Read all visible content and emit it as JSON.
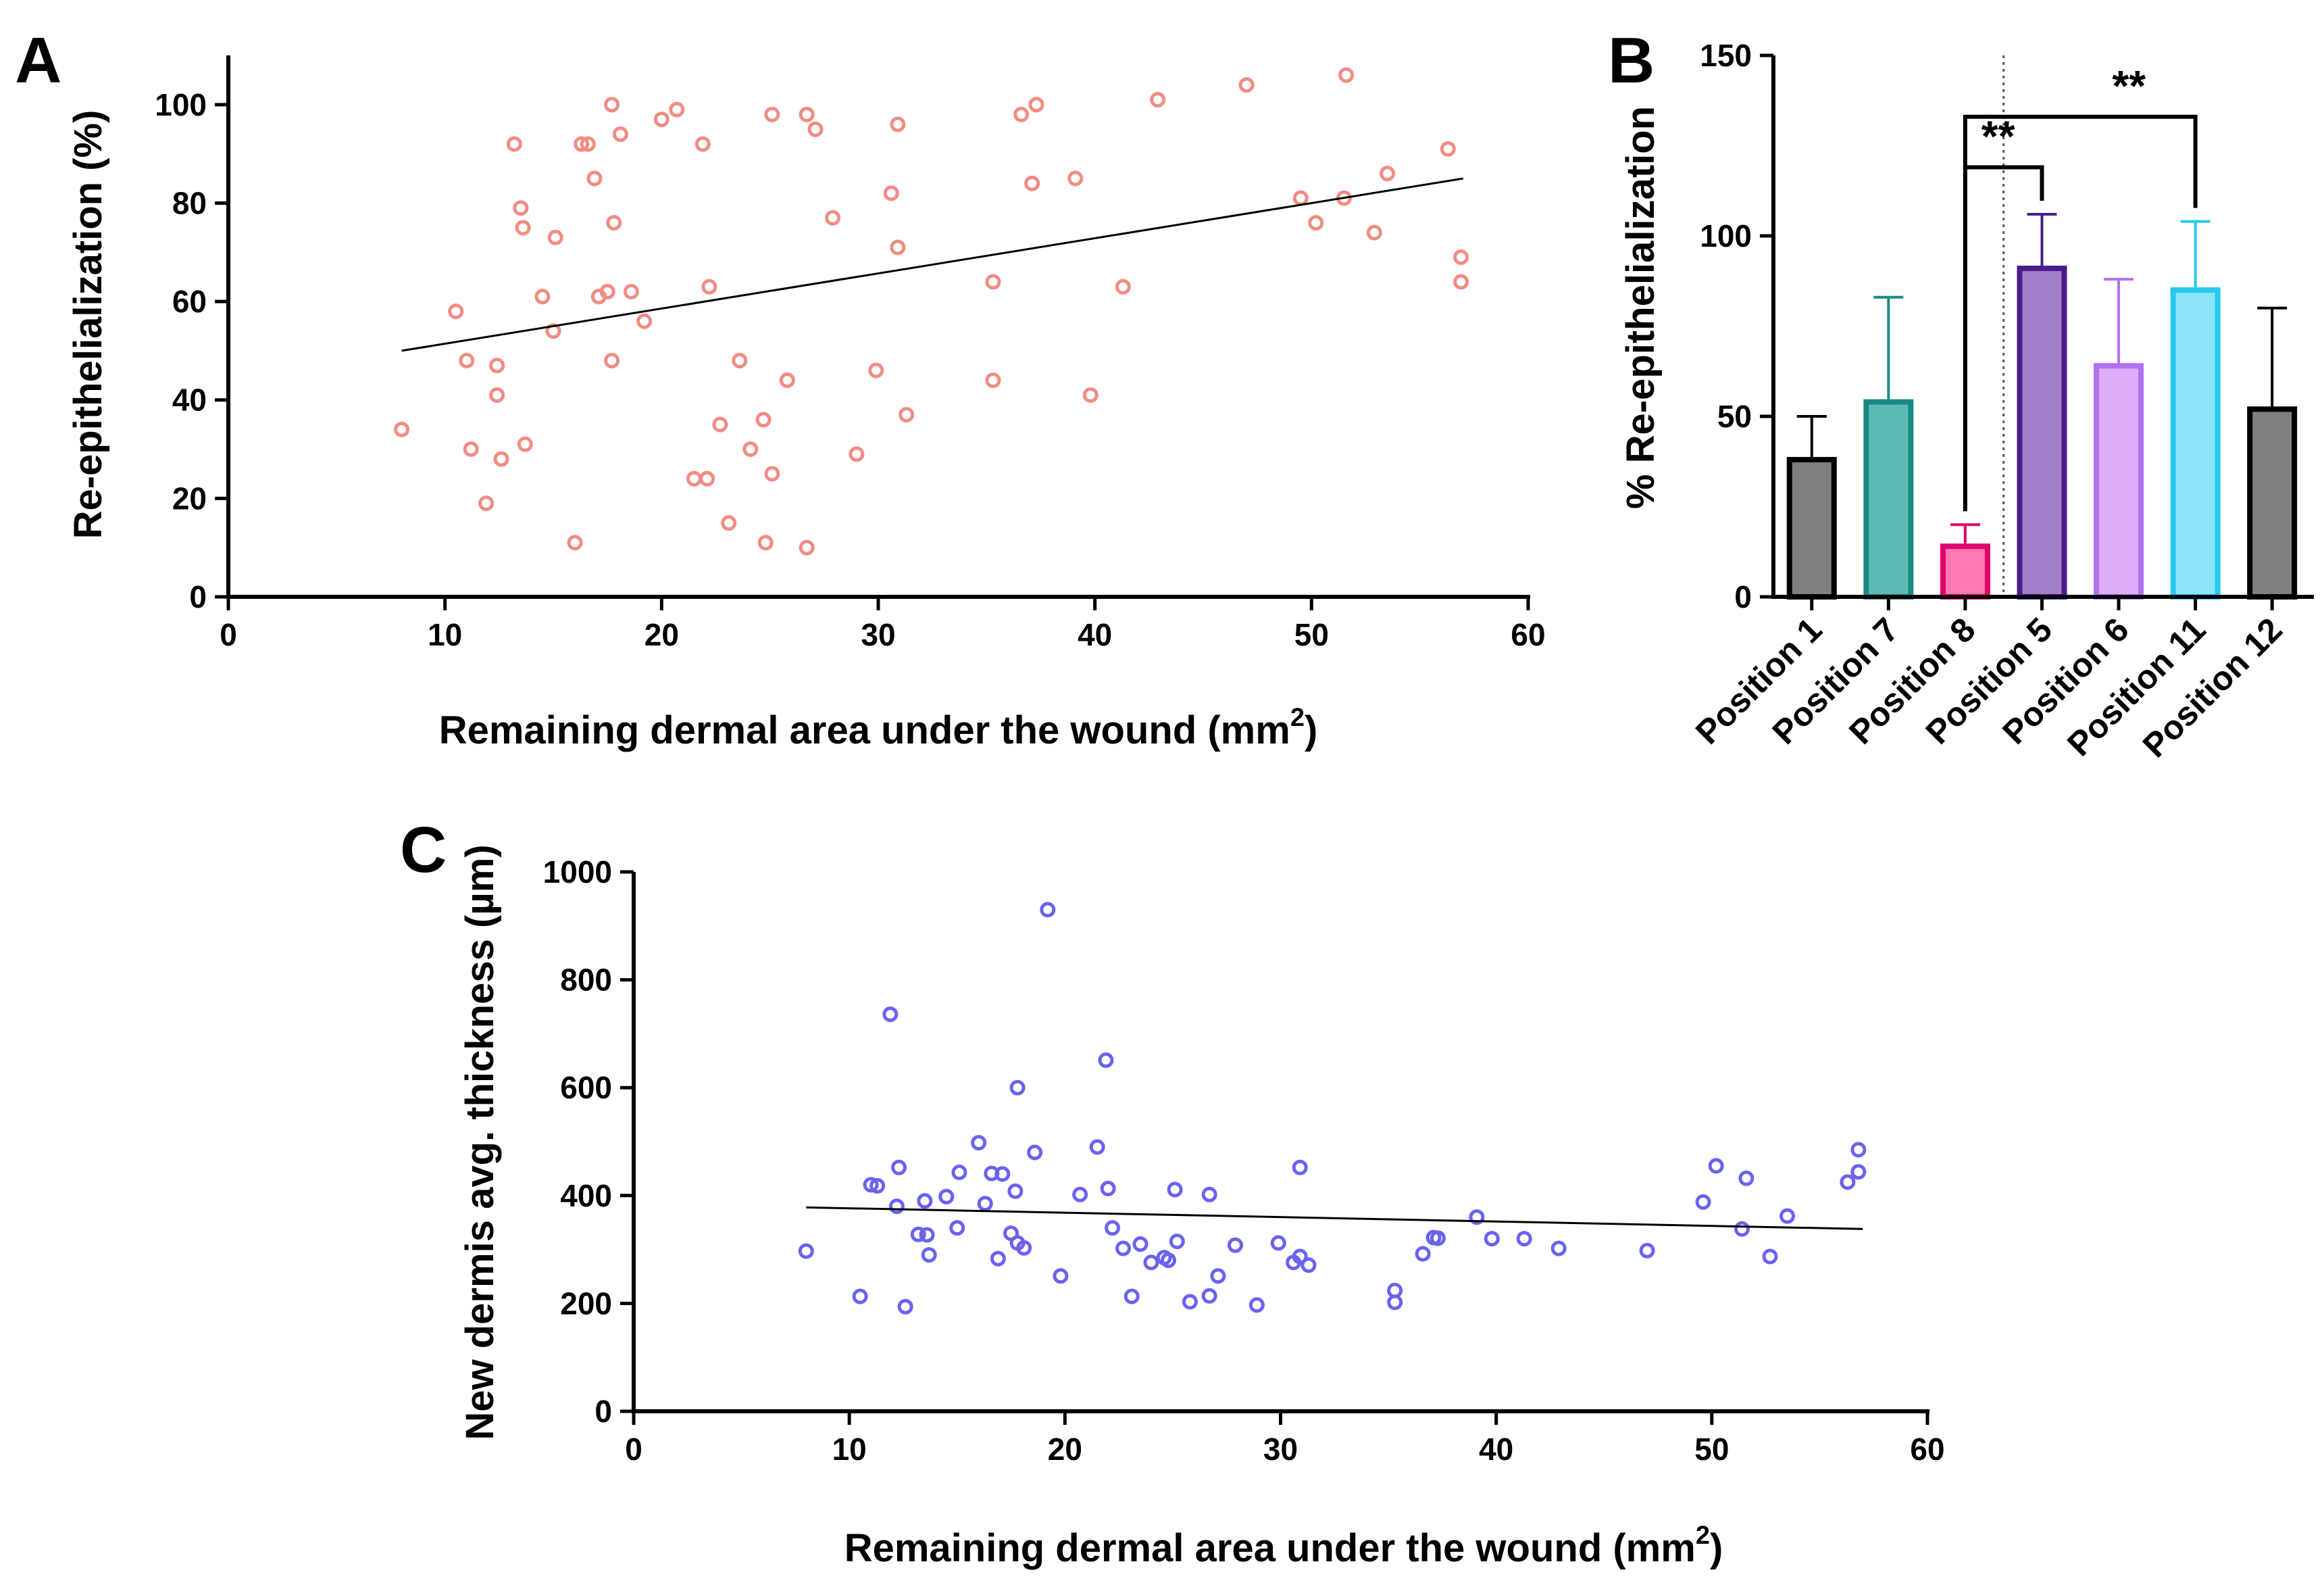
{
  "chart_data": [
    {
      "panel": "A",
      "type": "scatter",
      "xlabel": "Remaining dermal area under the wound (mm",
      "xlabel_sup": "2",
      "xlabel_end": ")",
      "ylabel": "Re-epithelialization (%)",
      "xlim": [
        0,
        60
      ],
      "ylim": [
        0,
        110
      ],
      "xticks": [
        "0",
        "10",
        "20",
        "30",
        "40",
        "50",
        "60"
      ],
      "yticks": [
        "0",
        "20",
        "40",
        "60",
        "80",
        "100"
      ],
      "marker_color": "#f08c84",
      "fit_line": {
        "x": [
          8,
          57
        ],
        "y": [
          50,
          85
        ]
      },
      "points": [
        [
          8,
          34
        ],
        [
          10.5,
          58
        ],
        [
          11,
          48
        ],
        [
          11.2,
          30
        ],
        [
          11.9,
          19
        ],
        [
          12.4,
          41
        ],
        [
          12.4,
          47
        ],
        [
          12.6,
          28
        ],
        [
          13.2,
          92
        ],
        [
          13.5,
          79
        ],
        [
          13.6,
          75
        ],
        [
          13.7,
          31
        ],
        [
          14.5,
          61
        ],
        [
          15,
          54
        ],
        [
          15.1,
          73
        ],
        [
          16,
          11
        ],
        [
          16.3,
          92
        ],
        [
          16.6,
          92
        ],
        [
          16.9,
          85
        ],
        [
          17.1,
          61
        ],
        [
          17.5,
          62
        ],
        [
          17.7,
          100
        ],
        [
          17.7,
          48
        ],
        [
          17.8,
          76
        ],
        [
          18.1,
          94
        ],
        [
          18.6,
          62
        ],
        [
          19.2,
          56
        ],
        [
          20,
          97
        ],
        [
          20.7,
          99
        ],
        [
          21.5,
          24
        ],
        [
          21.9,
          92
        ],
        [
          22.1,
          24
        ],
        [
          22.2,
          63
        ],
        [
          22.7,
          35
        ],
        [
          23.1,
          15
        ],
        [
          23.6,
          48
        ],
        [
          24.1,
          30
        ],
        [
          24.7,
          36
        ],
        [
          24.8,
          11
        ],
        [
          25.1,
          25
        ],
        [
          25.1,
          98
        ],
        [
          25.8,
          44
        ],
        [
          26.7,
          10
        ],
        [
          26.7,
          98
        ],
        [
          27.1,
          95
        ],
        [
          27.9,
          77
        ],
        [
          29,
          29
        ],
        [
          29.9,
          46
        ],
        [
          30.6,
          82
        ],
        [
          30.9,
          96
        ],
        [
          30.9,
          71
        ],
        [
          31.3,
          37
        ],
        [
          35.3,
          44
        ],
        [
          35.3,
          64
        ],
        [
          36.6,
          98
        ],
        [
          37.1,
          84
        ],
        [
          37.3,
          100
        ],
        [
          39.1,
          85
        ],
        [
          39.8,
          41
        ],
        [
          41.3,
          63
        ],
        [
          42.9,
          101
        ],
        [
          47,
          104
        ],
        [
          49.5,
          81
        ],
        [
          50.2,
          76
        ],
        [
          51.5,
          81
        ],
        [
          51.6,
          106
        ],
        [
          52.9,
          74
        ],
        [
          53.5,
          86
        ],
        [
          56.3,
          91
        ],
        [
          56.9,
          64
        ],
        [
          56.9,
          69
        ]
      ]
    },
    {
      "panel": "B",
      "type": "bar",
      "ylabel": "% Re-epithelialization",
      "ylim": [
        0,
        150
      ],
      "yticks": [
        "0",
        "50",
        "100",
        "150"
      ],
      "categories": [
        "Position 1",
        "Position 7",
        "Position 8",
        "Position 5",
        "Position 6",
        "Position 11",
        "Position 12"
      ],
      "values": [
        38,
        54,
        14,
        91,
        64,
        85,
        52
      ],
      "errors": [
        12,
        29,
        6,
        15,
        24,
        19,
        28
      ],
      "fill_colors": [
        "#808080",
        "#5dbbb5",
        "#ff7ab3",
        "#a47fc9",
        "#dbaef7",
        "#8be4f8",
        "#808080"
      ],
      "edge_colors": [
        "#000000",
        "#1a8a85",
        "#e0006e",
        "#4b1a8c",
        "#b26ff0",
        "#26c8ee",
        "#000000"
      ],
      "divider_after": "Position 8",
      "significance": [
        {
          "from": "Position 8",
          "to": "Position 5",
          "label": "**"
        },
        {
          "from": "Position 8",
          "to": "Position 11",
          "label": "**"
        }
      ]
    },
    {
      "panel": "C",
      "type": "scatter",
      "xlabel": "Remaining dermal area under the wound (mm",
      "xlabel_sup": "2",
      "xlabel_end": ")",
      "ylabel": "New dermis avg. thickness (µm)",
      "xlim": [
        0,
        60
      ],
      "ylim": [
        0,
        1000
      ],
      "xticks": [
        "0",
        "10",
        "20",
        "30",
        "40",
        "50",
        "60"
      ],
      "yticks": [
        "0",
        "200",
        "400",
        "600",
        "800",
        "1000"
      ],
      "marker_color": "#6a62ee",
      "fit_line": {
        "x": [
          8,
          57
        ],
        "y": [
          378,
          338
        ]
      },
      "points": [
        [
          8,
          297
        ],
        [
          10.5,
          213
        ],
        [
          11,
          420
        ],
        [
          11.3,
          418
        ],
        [
          11.9,
          736
        ],
        [
          12.2,
          380
        ],
        [
          12.3,
          452
        ],
        [
          12.6,
          194
        ],
        [
          13.2,
          328
        ],
        [
          13.5,
          390
        ],
        [
          13.6,
          327
        ],
        [
          13.7,
          290
        ],
        [
          14.5,
          398
        ],
        [
          15,
          340
        ],
        [
          15.1,
          443
        ],
        [
          16,
          498
        ],
        [
          16.3,
          385
        ],
        [
          16.6,
          441
        ],
        [
          16.9,
          283
        ],
        [
          17.1,
          440
        ],
        [
          17.5,
          330
        ],
        [
          17.7,
          408
        ],
        [
          17.8,
          312
        ],
        [
          17.8,
          600
        ],
        [
          18.1,
          303
        ],
        [
          18.6,
          480
        ],
        [
          19.2,
          930
        ],
        [
          19.8,
          251
        ],
        [
          20.7,
          402
        ],
        [
          21.5,
          490
        ],
        [
          21.9,
          651
        ],
        [
          22,
          413
        ],
        [
          22.2,
          340
        ],
        [
          22.7,
          302
        ],
        [
          23.1,
          213
        ],
        [
          23.5,
          310
        ],
        [
          24,
          276
        ],
        [
          24.6,
          285
        ],
        [
          24.8,
          280
        ],
        [
          25.1,
          411
        ],
        [
          25.2,
          315
        ],
        [
          25.8,
          203
        ],
        [
          26.7,
          214
        ],
        [
          26.7,
          402
        ],
        [
          27.1,
          251
        ],
        [
          27.9,
          308
        ],
        [
          28.9,
          197
        ],
        [
          29.9,
          312
        ],
        [
          30.6,
          276
        ],
        [
          30.9,
          287
        ],
        [
          30.9,
          452
        ],
        [
          31.3,
          271
        ],
        [
          35.3,
          224
        ],
        [
          35.3,
          202
        ],
        [
          36.6,
          292
        ],
        [
          37.1,
          322
        ],
        [
          37.3,
          321
        ],
        [
          39.1,
          360
        ],
        [
          39.8,
          320
        ],
        [
          41.3,
          320
        ],
        [
          42.9,
          302
        ],
        [
          47,
          298
        ],
        [
          49.6,
          388
        ],
        [
          50.2,
          455
        ],
        [
          51.4,
          338
        ],
        [
          51.6,
          432
        ],
        [
          52.7,
          287
        ],
        [
          53.5,
          362
        ],
        [
          56.3,
          425
        ],
        [
          56.8,
          485
        ],
        [
          56.8,
          444
        ]
      ]
    }
  ]
}
